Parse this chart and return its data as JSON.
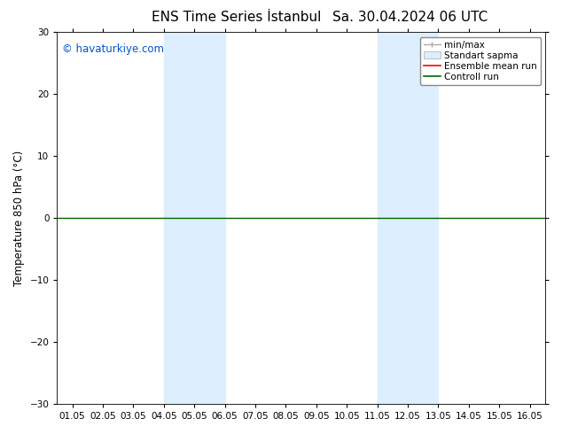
{
  "title": "ENS Time Series İstanbul",
  "title2": "Sa. 30.04.2024 06 UTC",
  "ylabel": "Temperature 850 hPa (°C)",
  "watermark": "© havaturkiye.com",
  "watermark_color": "#0055cc",
  "ylim": [
    -30,
    30
  ],
  "yticks": [
    -30,
    -20,
    -10,
    0,
    10,
    20,
    30
  ],
  "xtick_labels": [
    "01.05",
    "02.05",
    "03.05",
    "04.05",
    "05.05",
    "06.05",
    "07.05",
    "08.05",
    "09.05",
    "10.05",
    "11.05",
    "12.05",
    "13.05",
    "14.05",
    "15.05",
    "16.05"
  ],
  "background_color": "#ffffff",
  "shaded_regions": [
    {
      "xstart": 3,
      "xend": 5,
      "color": "#ddeeff"
    },
    {
      "xstart": 10,
      "xend": 12,
      "color": "#ddeeff"
    }
  ],
  "hline_color": "#006400",
  "hline_lw": 1.0,
  "ensemble_mean_color": "#ff0000",
  "control_run_color": "#006400",
  "legend_label_minmax": "min/max",
  "legend_label_std": "Standart sapma",
  "legend_label_ens": "Ensemble mean run",
  "legend_label_ctrl": "Controll run",
  "title_fontsize": 11,
  "tick_fontsize": 7.5,
  "ylabel_fontsize": 8.5,
  "watermark_fontsize": 8.5,
  "legend_fontsize": 7.5,
  "grid_color": "#cccccc",
  "border_color": "#000000",
  "minmax_color": "#aaaaaa",
  "std_face_color": "#ddeeff",
  "std_edge_color": "#aaaaaa"
}
